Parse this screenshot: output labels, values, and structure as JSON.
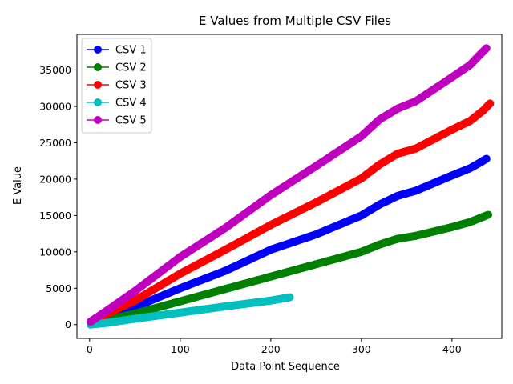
{
  "chart_data": {
    "type": "line",
    "title": "E Values from Multiple CSV Files",
    "xlabel": "Data Point Sequence",
    "ylabel": "E Value",
    "xlim": [
      -14,
      455
    ],
    "ylim": [
      -1900,
      39900
    ],
    "xticks": [
      0,
      100,
      200,
      300,
      400
    ],
    "yticks": [
      0,
      5000,
      10000,
      15000,
      20000,
      25000,
      30000,
      35000
    ],
    "grid": false,
    "legend_position": "top-left",
    "series": [
      {
        "name": "CSV 1",
        "color": "#0000ff",
        "points": [
          [
            1,
            100
          ],
          [
            20,
            1000
          ],
          [
            50,
            2400
          ],
          [
            100,
            5000
          ],
          [
            150,
            7400
          ],
          [
            200,
            10300
          ],
          [
            250,
            12400
          ],
          [
            300,
            15000
          ],
          [
            320,
            16500
          ],
          [
            340,
            17700
          ],
          [
            360,
            18400
          ],
          [
            400,
            20500
          ],
          [
            420,
            21500
          ],
          [
            430,
            22200
          ],
          [
            438,
            22800
          ]
        ]
      },
      {
        "name": "CSV 2",
        "color": "#008000",
        "points": [
          [
            1,
            50
          ],
          [
            20,
            700
          ],
          [
            50,
            1500
          ],
          [
            100,
            3200
          ],
          [
            150,
            4900
          ],
          [
            200,
            6600
          ],
          [
            250,
            8300
          ],
          [
            300,
            10000
          ],
          [
            320,
            11000
          ],
          [
            340,
            11800
          ],
          [
            360,
            12200
          ],
          [
            400,
            13400
          ],
          [
            420,
            14100
          ],
          [
            440,
            15100
          ]
        ]
      },
      {
        "name": "CSV 3",
        "color": "#ff0000",
        "points": [
          [
            1,
            300
          ],
          [
            20,
            1500
          ],
          [
            50,
            3300
          ],
          [
            100,
            7000
          ],
          [
            150,
            10300
          ],
          [
            200,
            13700
          ],
          [
            250,
            16800
          ],
          [
            300,
            20100
          ],
          [
            320,
            22000
          ],
          [
            340,
            23500
          ],
          [
            360,
            24200
          ],
          [
            400,
            26800
          ],
          [
            420,
            28000
          ],
          [
            435,
            29500
          ],
          [
            442,
            30400
          ]
        ]
      },
      {
        "name": "CSV 4",
        "color": "#00bfbf",
        "points": [
          [
            1,
            0
          ],
          [
            20,
            250
          ],
          [
            50,
            800
          ],
          [
            100,
            1650
          ],
          [
            150,
            2500
          ],
          [
            200,
            3300
          ],
          [
            221,
            3750
          ]
        ]
      },
      {
        "name": "CSV 5",
        "color": "#bf00bf",
        "points": [
          [
            1,
            400
          ],
          [
            20,
            2000
          ],
          [
            50,
            4600
          ],
          [
            100,
            9300
          ],
          [
            150,
            13300
          ],
          [
            200,
            17800
          ],
          [
            250,
            21800
          ],
          [
            300,
            25900
          ],
          [
            320,
            28200
          ],
          [
            340,
            29700
          ],
          [
            360,
            30700
          ],
          [
            400,
            34000
          ],
          [
            420,
            35700
          ],
          [
            430,
            37000
          ],
          [
            438,
            38000
          ]
        ]
      }
    ]
  }
}
